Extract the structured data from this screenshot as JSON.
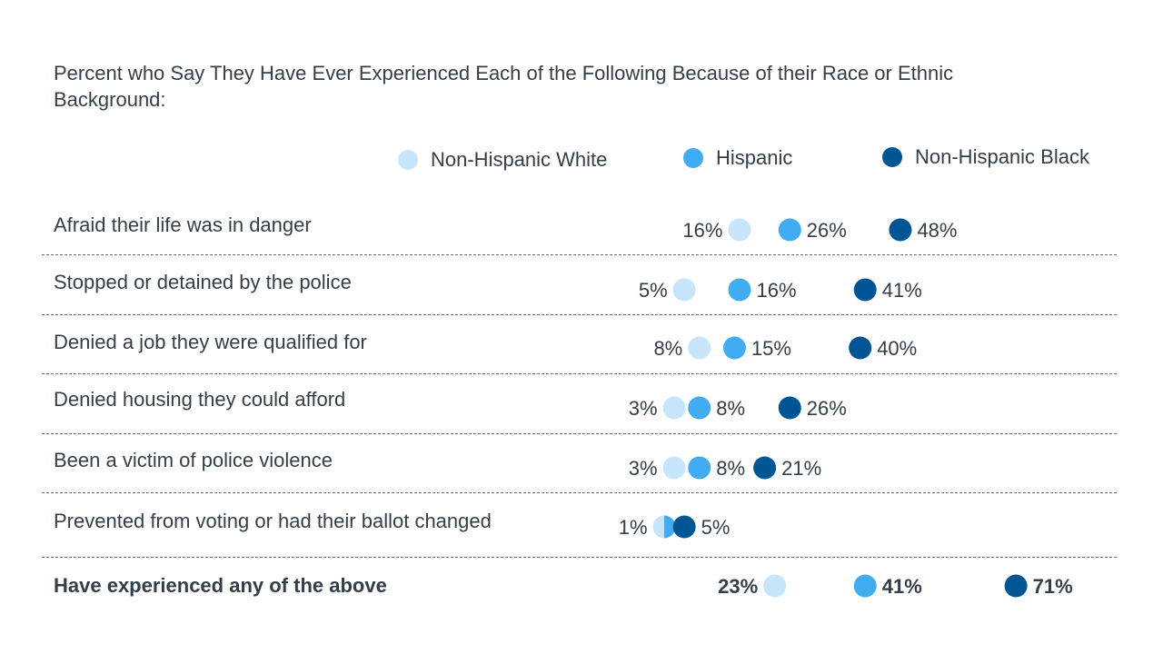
{
  "chart_data": {
    "type": "scatter",
    "title": "Percent who Say They Have Ever Experienced Each of the Following Because of their Race or Ethnic Background:",
    "series": [
      {
        "name": "Non-Hispanic White",
        "color": "#c6e5fb",
        "values": [
          16,
          5,
          8,
          3,
          3,
          1,
          23
        ]
      },
      {
        "name": "Hispanic",
        "color": "#42acf3",
        "values": [
          26,
          16,
          15,
          8,
          8,
          1,
          41
        ]
      },
      {
        "name": "Non-Hispanic Black",
        "color": "#005594",
        "values": [
          48,
          41,
          40,
          26,
          21,
          5,
          71
        ]
      }
    ],
    "categories": [
      "Afraid their life was in danger",
      "Stopped or detained by the police",
      "Denied a job they were qualified for",
      "Denied housing they could afford",
      "Been a victim of police violence",
      "Prevented from voting or had their ballot changed",
      "Have experienced any of the above"
    ],
    "value_labels": [
      [
        "16%",
        "26%",
        "48%"
      ],
      [
        "5%",
        "16%",
        "41%"
      ],
      [
        "8%",
        "15%",
        "40%"
      ],
      [
        "3%",
        "8%",
        "26%"
      ],
      [
        "3%",
        "8%",
        "21%"
      ],
      [
        "1%",
        "",
        "5%"
      ],
      [
        "23%",
        "41%",
        "71%"
      ]
    ],
    "bold_last_row": true,
    "grid": "dashed separators between rows",
    "legend": "top"
  }
}
